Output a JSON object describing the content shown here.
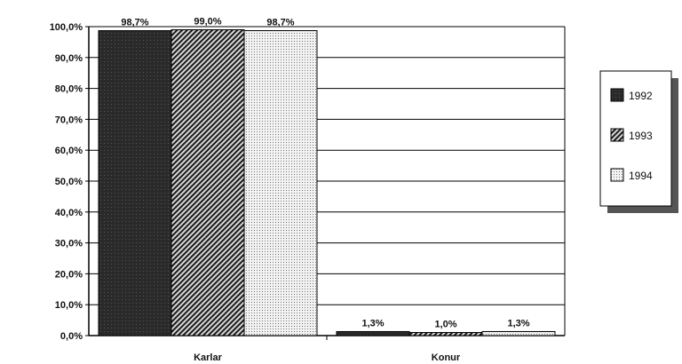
{
  "chart_data": {
    "type": "bar",
    "categories": [
      "Karlar",
      "Konur"
    ],
    "series": [
      {
        "name": "1992",
        "values": [
          98.7,
          1.3
        ],
        "labels": [
          "98,7%",
          "1,3%"
        ]
      },
      {
        "name": "1993",
        "values": [
          99.0,
          1.0
        ],
        "labels": [
          "99,0%",
          "1,0%"
        ]
      },
      {
        "name": "1994",
        "values": [
          98.7,
          1.3
        ],
        "labels": [
          "98,7%",
          "1,3%"
        ]
      }
    ],
    "ylim": [
      0,
      100
    ],
    "yticks": [
      {
        "value": 0,
        "label": "0,0%"
      },
      {
        "value": 10,
        "label": "10,0%"
      },
      {
        "value": 20,
        "label": "20,0%"
      },
      {
        "value": 30,
        "label": "30,0%"
      },
      {
        "value": 40,
        "label": "40,0%"
      },
      {
        "value": 50,
        "label": "50,0%"
      },
      {
        "value": 60,
        "label": "60,0%"
      },
      {
        "value": 70,
        "label": "70,0%"
      },
      {
        "value": 80,
        "label": "80,0%"
      },
      {
        "value": 90,
        "label": "90,0%"
      },
      {
        "value": 100,
        "label": "100,0%"
      }
    ],
    "grid": true,
    "legend": "right",
    "series_fills": [
      "dark solid",
      "diagonal hatch",
      "light dotted"
    ],
    "colors": {
      "dark": "#2a2a2a",
      "hatch": "#1a1a1a",
      "dotted_bg": "#f2f2f2"
    }
  }
}
